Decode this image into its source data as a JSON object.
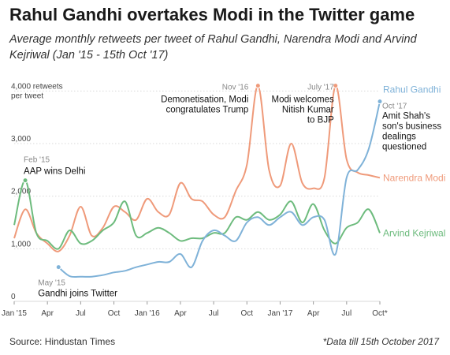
{
  "chart_data": {
    "type": "line",
    "title": "Rahul Gandhi overtakes Modi in the Twitter game",
    "subtitle": "Average monthly retweets per tweet of Rahul Gandhi, Narendra Modi and Arvind Kejriwal (Jan '15 - 15th Oct '17)",
    "ylabel_line1": "4,000 retweets",
    "ylabel_line2": "per tweet",
    "ylim": [
      0,
      4200
    ],
    "y_ticks": [
      {
        "value": 0,
        "label": "0"
      },
      {
        "value": 1000,
        "label": "1,000"
      },
      {
        "value": 2000,
        "label": "2,000"
      },
      {
        "value": 3000,
        "label": "3,000"
      }
    ],
    "x_ticks": [
      {
        "month": 0,
        "label": "Jan '15"
      },
      {
        "month": 3,
        "label": "Apr"
      },
      {
        "month": 6,
        "label": "Jul"
      },
      {
        "month": 9,
        "label": "Oct"
      },
      {
        "month": 12,
        "label": "Jan '16"
      },
      {
        "month": 15,
        "label": "Apr"
      },
      {
        "month": 18,
        "label": "Jul"
      },
      {
        "month": 21,
        "label": "Oct"
      },
      {
        "month": 24,
        "label": "Jan '17"
      },
      {
        "month": 27,
        "label": "Apr"
      },
      {
        "month": 30,
        "label": "Jul"
      },
      {
        "month": 33,
        "label": "Oct*"
      }
    ],
    "grid": true,
    "series": [
      {
        "name": "Narendra Modi",
        "color": "#ef9a7a",
        "values": [
          1200,
          1750,
          1300,
          1100,
          950,
          1250,
          1800,
          1250,
          1400,
          1800,
          1700,
          1550,
          1950,
          1700,
          1650,
          2250,
          1950,
          1900,
          1650,
          1600,
          2100,
          2600,
          4100,
          2500,
          2200,
          3000,
          2250,
          2150,
          2350,
          4100,
          2700,
          2450,
          2400,
          2350
        ]
      },
      {
        "name": "Arvind Kejriwal",
        "color": "#6dbb7d",
        "values": [
          1450,
          2300,
          1300,
          1150,
          1000,
          1350,
          1100,
          1150,
          1350,
          1500,
          1900,
          1250,
          1300,
          1400,
          1300,
          1150,
          1200,
          1200,
          1300,
          1300,
          1600,
          1550,
          1700,
          1550,
          1650,
          1900,
          1500,
          1850,
          1350,
          1100,
          1400,
          1500,
          1750,
          1300
        ]
      },
      {
        "name": "Rahul Gandhi",
        "color": "#7fb2d8",
        "values": [
          null,
          null,
          null,
          null,
          650,
          480,
          470,
          470,
          500,
          550,
          580,
          650,
          700,
          750,
          750,
          900,
          650,
          1150,
          1350,
          1250,
          1150,
          1500,
          1600,
          1450,
          1600,
          1700,
          1450,
          1600,
          1550,
          900,
          2350,
          2500,
          2900,
          3800
        ]
      }
    ],
    "annotations": [
      {
        "month": 1,
        "series": 1,
        "date": "Feb '15",
        "lines": [
          "AAP wins Delhi"
        ]
      },
      {
        "month": 4,
        "series": 2,
        "date": "May '15",
        "lines": [
          "Gandhi joins Twitter"
        ]
      },
      {
        "month": 22,
        "series": 0,
        "date": "Nov '16",
        "lines": [
          "Demonetisation, Modi",
          "congratulates Trump"
        ]
      },
      {
        "month": 29,
        "series": 0,
        "date": "July '17",
        "lines": [
          "Modi welcomes",
          "Nitish Kumar",
          "to BJP"
        ]
      },
      {
        "month": 33,
        "series": 2,
        "date": "Oct '17",
        "lines": [
          "Amit Shah's",
          "son's business",
          "dealings",
          "questioned"
        ]
      }
    ]
  },
  "source": "Source: Hindustan Times",
  "footnote": "*Data till 15th October 2017"
}
